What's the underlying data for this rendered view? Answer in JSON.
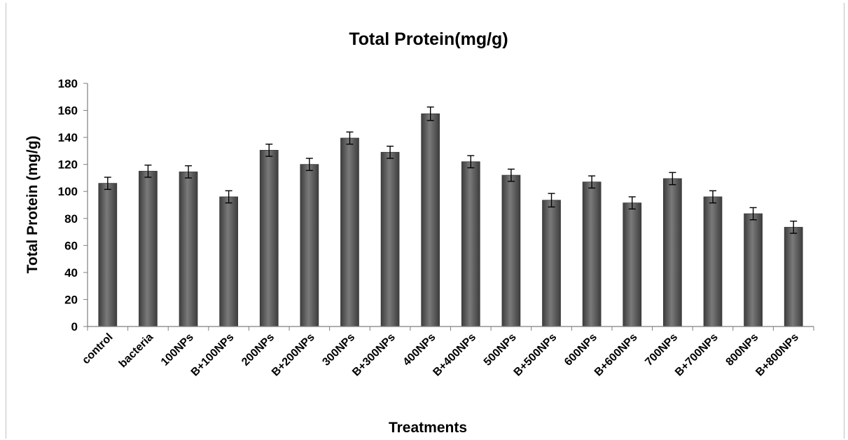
{
  "chart_data": {
    "type": "bar",
    "title": "Total Protein(mg/g)",
    "xlabel": "Treatments",
    "ylabel": "Total Protein (mg/g)",
    "ylim": [
      0,
      180
    ],
    "yticks": [
      0,
      20,
      40,
      60,
      80,
      100,
      120,
      140,
      160,
      180
    ],
    "grid": false,
    "legend": "none",
    "categories": [
      "control",
      "bacteria",
      "100NPs",
      "B+100NPs",
      "200NPs",
      "B+200NPs",
      "300NPs",
      "B+300NPs",
      "400NPs",
      "B+400NPs",
      "500NPs",
      "B+500NPs",
      "600NPs",
      "B+600NPs",
      "700NPs",
      "B+700NPs",
      "800NPs",
      "B+800NPs"
    ],
    "values": [
      106,
      115,
      114.5,
      96,
      130.5,
      120,
      139.5,
      129,
      157.5,
      122,
      112,
      93.5,
      107,
      91.5,
      109.5,
      96,
      83.5,
      73.5
    ],
    "errors": [
      4.5,
      4.5,
      4.5,
      4.5,
      4.5,
      4.5,
      4.5,
      4.5,
      5,
      4.5,
      4.5,
      5,
      4.5,
      4.5,
      4.5,
      4.5,
      4.5,
      4.5
    ],
    "colors": {
      "bar": "#595959",
      "bar_edge": "#3a3a3a",
      "axis": "#7f7f7f",
      "error": "#000000"
    }
  }
}
